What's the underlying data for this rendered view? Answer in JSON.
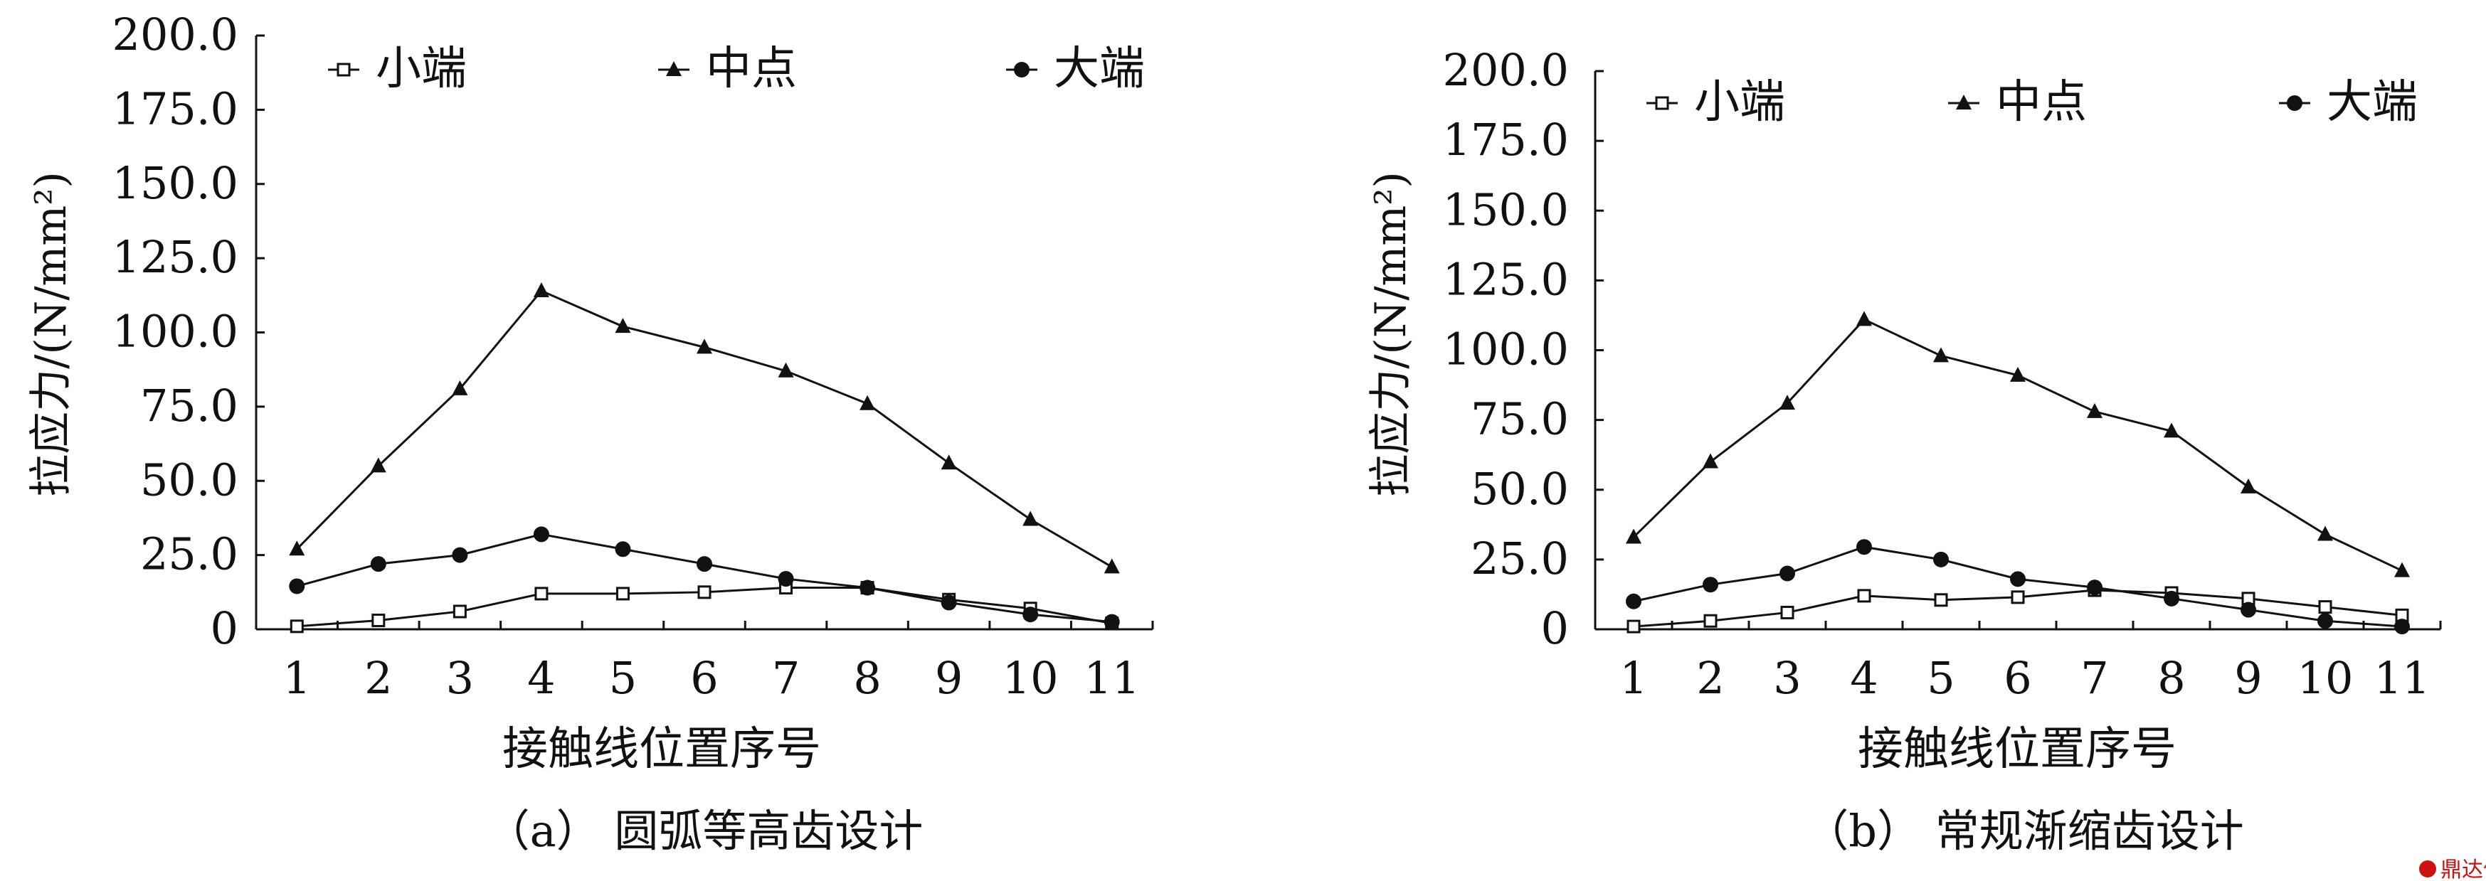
{
  "chart_data": [
    {
      "type": "line",
      "caption": "（a） 圆弧等高齿设计",
      "xlabel": "接触线位置序号",
      "ylabel": "拉应力/(N/mm²)",
      "x": [
        1,
        2,
        3,
        4,
        5,
        6,
        7,
        8,
        9,
        10,
        11
      ],
      "ylim": [
        0,
        200
      ],
      "yticks": [
        "0",
        "25.0",
        "50.0",
        "75.0",
        "100.0",
        "125.0",
        "150.0",
        "175.0",
        "200.0"
      ],
      "legend_position": "top",
      "grid": false,
      "series": [
        {
          "name": "小端",
          "marker": "square-open",
          "values": [
            1,
            3,
            6,
            12,
            12,
            12.5,
            14,
            14,
            10,
            7,
            2
          ]
        },
        {
          "name": "中点",
          "marker": "triangle",
          "values": [
            27,
            55,
            81,
            114,
            102,
            95,
            87,
            76,
            56,
            37,
            21
          ]
        },
        {
          "name": "大端",
          "marker": "circle",
          "values": [
            14.5,
            22,
            25,
            32,
            27,
            22,
            17,
            14,
            9,
            5,
            2.5
          ]
        }
      ]
    },
    {
      "type": "line",
      "caption": "（b） 常规渐缩齿设计",
      "xlabel": "接触线位置序号",
      "ylabel": "拉应力/(N/mm²)",
      "x": [
        1,
        2,
        3,
        4,
        5,
        6,
        7,
        8,
        9,
        10,
        11
      ],
      "ylim": [
        0,
        200
      ],
      "yticks": [
        "0",
        "25.0",
        "50.0",
        "75.0",
        "100.0",
        "125.0",
        "150.0",
        "175.0",
        "200.0"
      ],
      "legend_position": "top",
      "grid": false,
      "series": [
        {
          "name": "小端",
          "marker": "square-open",
          "values": [
            1,
            3,
            6,
            12,
            10.5,
            11.5,
            14,
            13,
            11,
            8,
            5
          ]
        },
        {
          "name": "中点",
          "marker": "triangle",
          "values": [
            33,
            60,
            81,
            111,
            98,
            91,
            78,
            71,
            51,
            34,
            21
          ]
        },
        {
          "name": "大端",
          "marker": "circle",
          "values": [
            10,
            16,
            20,
            29.5,
            25,
            18,
            15,
            11,
            7,
            3,
            1
          ]
        }
      ]
    }
  ],
  "watermark": {
    "text": "鼎达信"
  }
}
